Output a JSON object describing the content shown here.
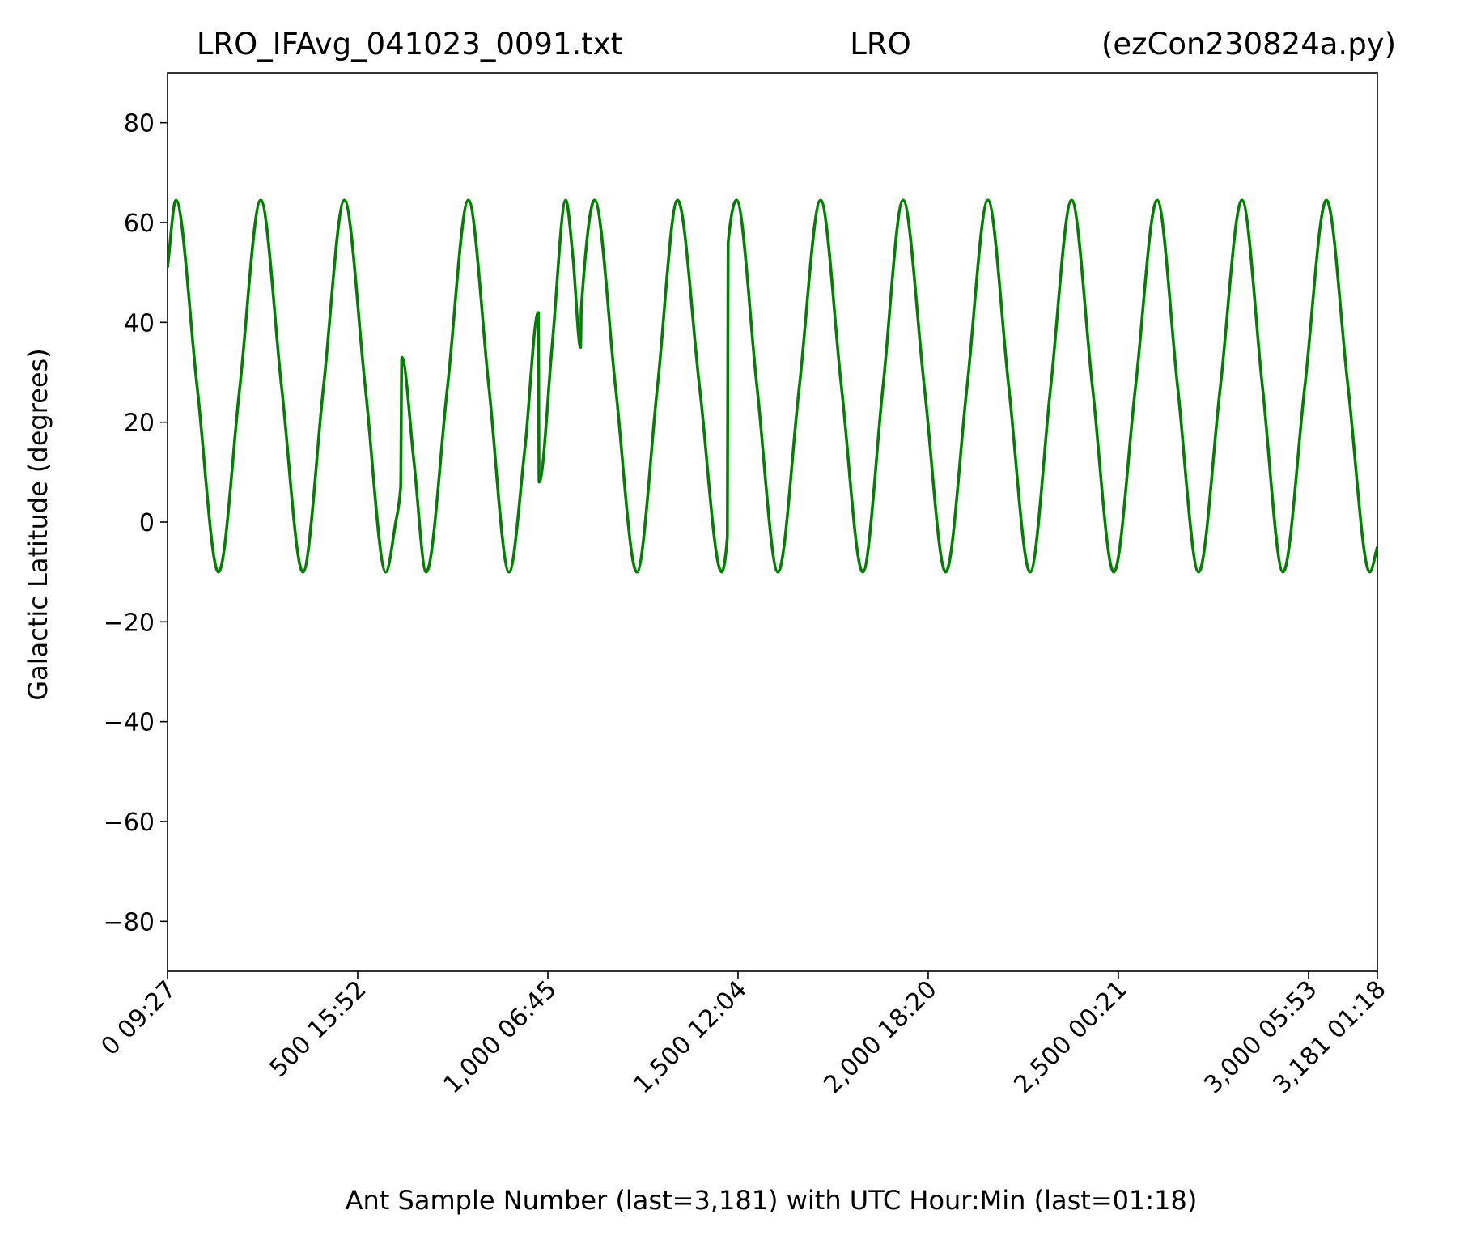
{
  "chart_data": {
    "type": "line",
    "title": [
      "LRO_IFAvg_041023_0091.txt",
      "LRO",
      "(ezCon230824a.py)"
    ],
    "xlabel": "Ant Sample Number (last=3,181) with UTC Hour:Min (last=01:18)",
    "ylabel": "Galactic Latitude (degrees)",
    "xlim": [
      0,
      3181
    ],
    "ylim": [
      -90,
      90
    ],
    "xticks": [
      {
        "value": 0,
        "label": "0  09:27"
      },
      {
        "value": 500,
        "label": "500  15:52"
      },
      {
        "value": 1000,
        "label": "1,000  06:45"
      },
      {
        "value": 1500,
        "label": "1,500  12:04"
      },
      {
        "value": 2000,
        "label": "2,000  18:20"
      },
      {
        "value": 2500,
        "label": "2,500  00:21"
      },
      {
        "value": 3000,
        "label": "3,000  05:53"
      },
      {
        "value": 3181,
        "label": "3,181  01:18"
      }
    ],
    "yticks": [
      {
        "value": -80,
        "label": "−80"
      },
      {
        "value": -60,
        "label": "−60"
      },
      {
        "value": -40,
        "label": "−40"
      },
      {
        "value": -20,
        "label": "−20"
      },
      0,
      20,
      40,
      60,
      80
    ],
    "grid": false,
    "series": [
      {
        "name": "Galactic Latitude",
        "color": "#008000",
        "x": [
          0,
          22,
          78,
          134,
          190,
          245,
          300,
          356,
          410,
          465,
          520,
          574,
          600,
          613,
          616,
          648,
          680,
          736,
          791,
          845,
          898,
          940,
          975,
          977,
          1012,
          1047,
          1066,
          1086,
          1088,
          1123,
          1178,
          1234,
          1288,
          1341,
          1399,
          1457,
          1472,
          1474,
          1496,
          1550,
          1605,
          1661,
          1717,
          1772,
          1828,
          1881,
          1934,
          1990,
          2046,
          2102,
          2157,
          2212,
          2268,
          2322,
          2377,
          2432,
          2488,
          2545,
          2602,
          2656,
          2711,
          2768,
          2825,
          2879,
          2933,
          2990,
          3047,
          3104,
          3161,
          3181
        ],
        "values": [
          51,
          64.5,
          27,
          -10,
          27,
          64.5,
          27,
          -10,
          27,
          64.5,
          27,
          -10,
          0,
          7,
          33,
          12,
          -10,
          27,
          64.5,
          27,
          -10,
          15,
          42,
          8,
          36,
          64.5,
          53,
          35,
          43,
          64.5,
          27,
          -10,
          27,
          64.5,
          27,
          -10,
          -3,
          56,
          64.5,
          27,
          -10,
          27,
          64.5,
          27,
          -10,
          27,
          64.5,
          27,
          -10,
          27,
          64.5,
          27,
          -10,
          27,
          64.5,
          27,
          -10,
          27,
          64.5,
          27,
          -10,
          27,
          64.5,
          27,
          -10,
          27,
          64.5,
          27,
          -10,
          -5
        ]
      }
    ]
  }
}
